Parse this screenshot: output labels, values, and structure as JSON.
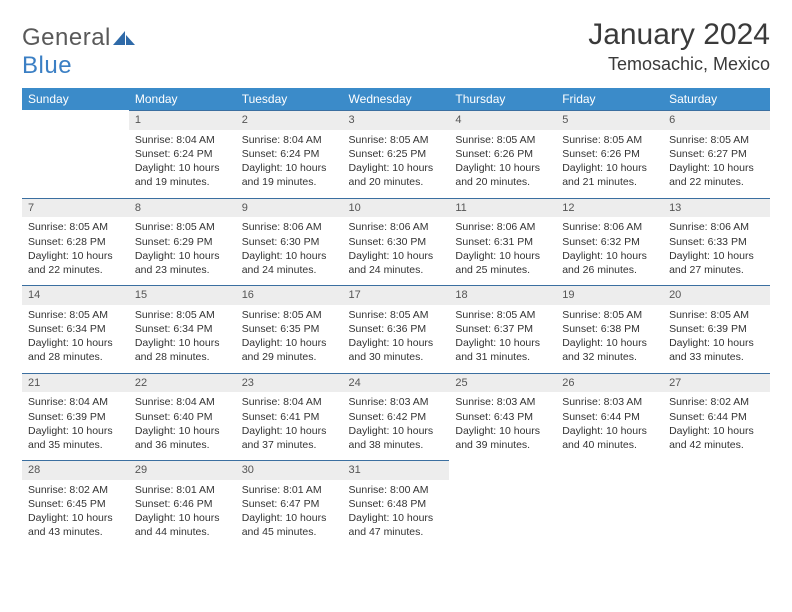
{
  "brand": {
    "name_part1": "General",
    "name_part2": "Blue"
  },
  "header": {
    "month_title": "January 2024",
    "location": "Temosachic, Mexico"
  },
  "colors": {
    "header_bg": "#3b8bc9",
    "header_text": "#ffffff",
    "daynum_bg": "#ededed",
    "daynum_text": "#555555",
    "cell_border": "#3b6fa0",
    "body_text": "#333333",
    "page_bg": "#ffffff",
    "logo_gray": "#595959",
    "logo_blue": "#3b7fc4",
    "title_color": "#3a3a3a"
  },
  "typography": {
    "month_title_fontsize": 30,
    "location_fontsize": 18,
    "weekday_fontsize": 12,
    "daynum_fontsize": 11,
    "cell_fontsize": 10.5
  },
  "weekdays": [
    "Sunday",
    "Monday",
    "Tuesday",
    "Wednesday",
    "Thursday",
    "Friday",
    "Saturday"
  ],
  "days": [
    {
      "n": 1,
      "sunrise": "8:04 AM",
      "sunset": "6:24 PM",
      "daylight": "10 hours and 19 minutes."
    },
    {
      "n": 2,
      "sunrise": "8:04 AM",
      "sunset": "6:24 PM",
      "daylight": "10 hours and 19 minutes."
    },
    {
      "n": 3,
      "sunrise": "8:05 AM",
      "sunset": "6:25 PM",
      "daylight": "10 hours and 20 minutes."
    },
    {
      "n": 4,
      "sunrise": "8:05 AM",
      "sunset": "6:26 PM",
      "daylight": "10 hours and 20 minutes."
    },
    {
      "n": 5,
      "sunrise": "8:05 AM",
      "sunset": "6:26 PM",
      "daylight": "10 hours and 21 minutes."
    },
    {
      "n": 6,
      "sunrise": "8:05 AM",
      "sunset": "6:27 PM",
      "daylight": "10 hours and 22 minutes."
    },
    {
      "n": 7,
      "sunrise": "8:05 AM",
      "sunset": "6:28 PM",
      "daylight": "10 hours and 22 minutes."
    },
    {
      "n": 8,
      "sunrise": "8:05 AM",
      "sunset": "6:29 PM",
      "daylight": "10 hours and 23 minutes."
    },
    {
      "n": 9,
      "sunrise": "8:06 AM",
      "sunset": "6:30 PM",
      "daylight": "10 hours and 24 minutes."
    },
    {
      "n": 10,
      "sunrise": "8:06 AM",
      "sunset": "6:30 PM",
      "daylight": "10 hours and 24 minutes."
    },
    {
      "n": 11,
      "sunrise": "8:06 AM",
      "sunset": "6:31 PM",
      "daylight": "10 hours and 25 minutes."
    },
    {
      "n": 12,
      "sunrise": "8:06 AM",
      "sunset": "6:32 PM",
      "daylight": "10 hours and 26 minutes."
    },
    {
      "n": 13,
      "sunrise": "8:06 AM",
      "sunset": "6:33 PM",
      "daylight": "10 hours and 27 minutes."
    },
    {
      "n": 14,
      "sunrise": "8:05 AM",
      "sunset": "6:34 PM",
      "daylight": "10 hours and 28 minutes."
    },
    {
      "n": 15,
      "sunrise": "8:05 AM",
      "sunset": "6:34 PM",
      "daylight": "10 hours and 28 minutes."
    },
    {
      "n": 16,
      "sunrise": "8:05 AM",
      "sunset": "6:35 PM",
      "daylight": "10 hours and 29 minutes."
    },
    {
      "n": 17,
      "sunrise": "8:05 AM",
      "sunset": "6:36 PM",
      "daylight": "10 hours and 30 minutes."
    },
    {
      "n": 18,
      "sunrise": "8:05 AM",
      "sunset": "6:37 PM",
      "daylight": "10 hours and 31 minutes."
    },
    {
      "n": 19,
      "sunrise": "8:05 AM",
      "sunset": "6:38 PM",
      "daylight": "10 hours and 32 minutes."
    },
    {
      "n": 20,
      "sunrise": "8:05 AM",
      "sunset": "6:39 PM",
      "daylight": "10 hours and 33 minutes."
    },
    {
      "n": 21,
      "sunrise": "8:04 AM",
      "sunset": "6:39 PM",
      "daylight": "10 hours and 35 minutes."
    },
    {
      "n": 22,
      "sunrise": "8:04 AM",
      "sunset": "6:40 PM",
      "daylight": "10 hours and 36 minutes."
    },
    {
      "n": 23,
      "sunrise": "8:04 AM",
      "sunset": "6:41 PM",
      "daylight": "10 hours and 37 minutes."
    },
    {
      "n": 24,
      "sunrise": "8:03 AM",
      "sunset": "6:42 PM",
      "daylight": "10 hours and 38 minutes."
    },
    {
      "n": 25,
      "sunrise": "8:03 AM",
      "sunset": "6:43 PM",
      "daylight": "10 hours and 39 minutes."
    },
    {
      "n": 26,
      "sunrise": "8:03 AM",
      "sunset": "6:44 PM",
      "daylight": "10 hours and 40 minutes."
    },
    {
      "n": 27,
      "sunrise": "8:02 AM",
      "sunset": "6:44 PM",
      "daylight": "10 hours and 42 minutes."
    },
    {
      "n": 28,
      "sunrise": "8:02 AM",
      "sunset": "6:45 PM",
      "daylight": "10 hours and 43 minutes."
    },
    {
      "n": 29,
      "sunrise": "8:01 AM",
      "sunset": "6:46 PM",
      "daylight": "10 hours and 44 minutes."
    },
    {
      "n": 30,
      "sunrise": "8:01 AM",
      "sunset": "6:47 PM",
      "daylight": "10 hours and 45 minutes."
    },
    {
      "n": 31,
      "sunrise": "8:00 AM",
      "sunset": "6:48 PM",
      "daylight": "10 hours and 47 minutes."
    }
  ],
  "labels": {
    "sunrise": "Sunrise:",
    "sunset": "Sunset:",
    "daylight": "Daylight:"
  },
  "layout": {
    "start_weekday_offset": 1,
    "rows": 5,
    "cols": 7
  }
}
